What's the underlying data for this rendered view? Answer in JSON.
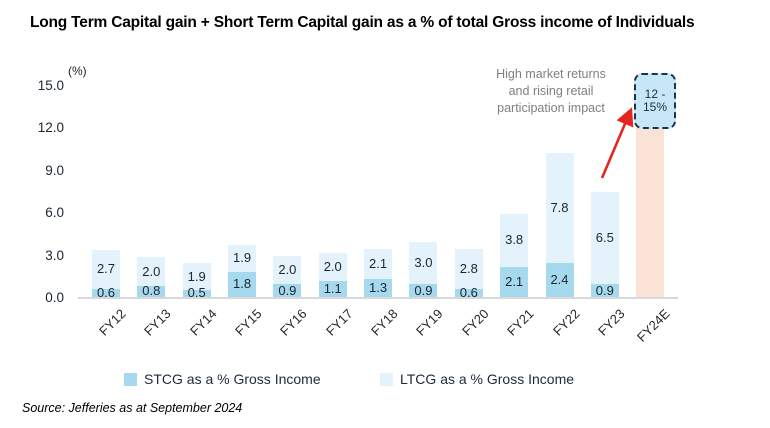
{
  "chart_data": {
    "type": "bar",
    "stacked": true,
    "title": "Long Term Capital gain + Short Term Capital gain as a % of total Gross income of Individuals",
    "unit_label": "(%)",
    "categories": [
      "FY12",
      "FY13",
      "FY14",
      "FY15",
      "FY16",
      "FY17",
      "FY18",
      "FY19",
      "FY20",
      "FY21",
      "FY22",
      "FY23",
      "FY24E"
    ],
    "series": [
      {
        "name": "STCG as a % Gross Income",
        "color": "#a6d9ed",
        "values": [
          0.6,
          0.8,
          0.5,
          1.8,
          0.9,
          1.1,
          1.3,
          0.9,
          0.6,
          2.1,
          2.4,
          0.9,
          null
        ]
      },
      {
        "name": "LTCG as a % Gross Income",
        "color": "#e4f2fb",
        "values": [
          2.7,
          2.0,
          1.9,
          1.9,
          2.0,
          2.0,
          2.1,
          3.0,
          2.8,
          3.8,
          7.8,
          6.5,
          null
        ]
      }
    ],
    "forecast_bar": {
      "category": "FY24E",
      "bar_value": 12.0,
      "color": "#fae3d4",
      "callout_label_lines": [
        "12 -",
        "15%"
      ],
      "callout_fill": "#c8e7f6",
      "callout_border": "#18344f"
    },
    "ylim": [
      0,
      15
    ],
    "ytick_labels": [
      "0.0",
      "3.0",
      "6.0",
      "9.0",
      "12.0",
      "15.0"
    ],
    "ytick_values": [
      0,
      3,
      6,
      9,
      12,
      15
    ],
    "grid": false,
    "legend_position": "bottom",
    "annotation": {
      "text_lines": [
        "High market returns",
        "and rising retail",
        "participation impact"
      ],
      "arrow_color": "#e52620"
    }
  },
  "source": "Source: Jefferies as at September 2024"
}
